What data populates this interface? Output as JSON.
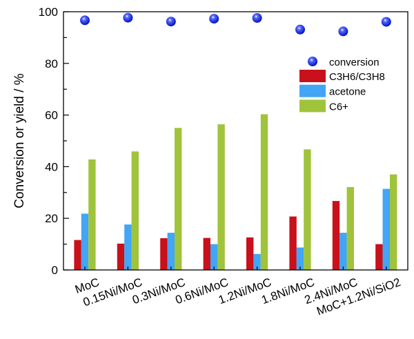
{
  "chart_data": {
    "type": "bar",
    "title": "",
    "xlabel": "",
    "ylabel": "Conversion or yield / %",
    "ylim": [
      0,
      100
    ],
    "yticks": [
      "0",
      "20",
      "40",
      "60",
      "80",
      "100"
    ],
    "grid": false,
    "legend_position": "top-right",
    "categories": [
      "MoC",
      "0.15Ni/MoC",
      "0.3Ni/MoC",
      "0.6Ni/MoC",
      "1.2Ni/MoC",
      "1.8Ni/MoC",
      "2.4Ni/MoC",
      "MoC+1.2Ni/SiO2"
    ],
    "scatter_series": {
      "name": "conversion",
      "color": "#1a2cf0",
      "values": [
        96.7,
        97.7,
        96.2,
        97.3,
        97.6,
        93.1,
        92.4,
        96.1
      ]
    },
    "series": [
      {
        "name": "C3H6/C3H8",
        "color": "#c8111b",
        "values": [
          11.6,
          10.2,
          12.3,
          12.4,
          12.6,
          20.7,
          26.7,
          10.0
        ]
      },
      {
        "name": "acetone",
        "color": "#42a5f5",
        "values": [
          21.8,
          17.6,
          14.4,
          10.0,
          6.2,
          8.7,
          14.4,
          31.4
        ]
      },
      {
        "name": "C6+",
        "color": "#a0c33c",
        "values": [
          42.8,
          45.9,
          55.0,
          56.4,
          60.3,
          46.7,
          32.1,
          37.0
        ]
      }
    ]
  }
}
